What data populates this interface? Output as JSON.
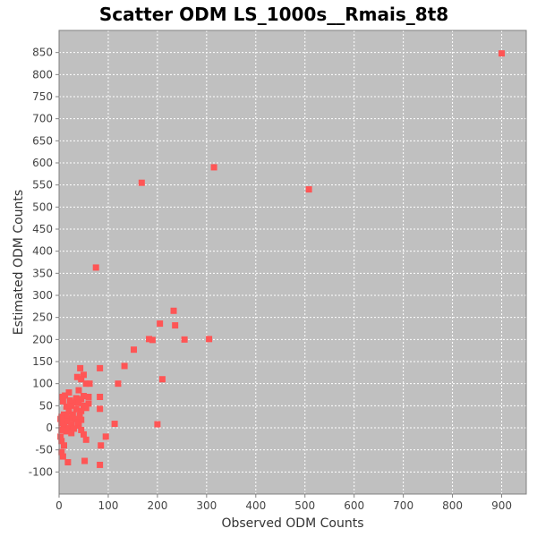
{
  "chart_data": {
    "type": "scatter",
    "title": "Scatter ODM LS_1000s__Rmais_8t8",
    "xlabel": "Observed ODM Counts",
    "ylabel": "Estimated ODM Counts",
    "xlim": [
      0,
      950
    ],
    "ylim": [
      -150,
      900
    ],
    "xticks": [
      0,
      100,
      200,
      300,
      400,
      500,
      600,
      700,
      800,
      900
    ],
    "yticks": [
      -100,
      -50,
      0,
      50,
      100,
      150,
      200,
      250,
      300,
      350,
      400,
      450,
      500,
      550,
      600,
      650,
      700,
      750,
      800,
      850
    ],
    "grid": true,
    "colors": {
      "plot_background": "#c0c0c0",
      "grid": "#ffffff",
      "marker": "#ff5555"
    },
    "points": [
      [
        900,
        848
      ],
      [
        315,
        590
      ],
      [
        508,
        540
      ],
      [
        168,
        555
      ],
      [
        75,
        363
      ],
      [
        233,
        265
      ],
      [
        205,
        236
      ],
      [
        236,
        232
      ],
      [
        183,
        201
      ],
      [
        190,
        199
      ],
      [
        255,
        200
      ],
      [
        305,
        201
      ],
      [
        152,
        177
      ],
      [
        133,
        140
      ],
      [
        120,
        100
      ],
      [
        210,
        110
      ],
      [
        113,
        9
      ],
      [
        200,
        8
      ],
      [
        95,
        -20
      ],
      [
        85,
        -40
      ],
      [
        83,
        -84
      ],
      [
        83,
        135
      ],
      [
        83,
        70
      ],
      [
        83,
        43
      ],
      [
        43,
        135
      ],
      [
        50,
        120
      ],
      [
        37,
        115
      ],
      [
        45,
        110
      ],
      [
        55,
        100
      ],
      [
        62,
        100
      ],
      [
        40,
        85
      ],
      [
        20,
        80
      ],
      [
        12,
        73
      ],
      [
        7,
        70
      ],
      [
        60,
        70
      ],
      [
        50,
        72
      ],
      [
        35,
        67
      ],
      [
        45,
        65
      ],
      [
        30,
        57
      ],
      [
        40,
        56
      ],
      [
        60,
        55
      ],
      [
        15,
        48
      ],
      [
        25,
        50
      ],
      [
        50,
        50
      ],
      [
        55,
        45
      ],
      [
        35,
        42
      ],
      [
        45,
        38
      ],
      [
        20,
        37
      ],
      [
        10,
        30
      ],
      [
        15,
        27
      ],
      [
        5,
        25
      ],
      [
        25,
        22
      ],
      [
        35,
        20
      ],
      [
        45,
        18
      ],
      [
        15,
        15
      ],
      [
        5,
        10
      ],
      [
        25,
        8
      ],
      [
        40,
        5
      ],
      [
        10,
        2
      ],
      [
        20,
        0
      ],
      [
        30,
        -2
      ],
      [
        5,
        -5
      ],
      [
        15,
        -8
      ],
      [
        45,
        -5
      ],
      [
        25,
        -12
      ],
      [
        50,
        -15
      ],
      [
        55,
        -27
      ],
      [
        5,
        -30
      ],
      [
        10,
        -40
      ],
      [
        5,
        -55
      ],
      [
        8,
        -65
      ],
      [
        18,
        -78
      ],
      [
        52,
        -75
      ],
      [
        3,
        20
      ],
      [
        3,
        -20
      ],
      [
        8,
        60
      ],
      [
        28,
        30
      ],
      [
        42,
        28
      ],
      [
        38,
        12
      ],
      [
        22,
        62
      ]
    ]
  }
}
